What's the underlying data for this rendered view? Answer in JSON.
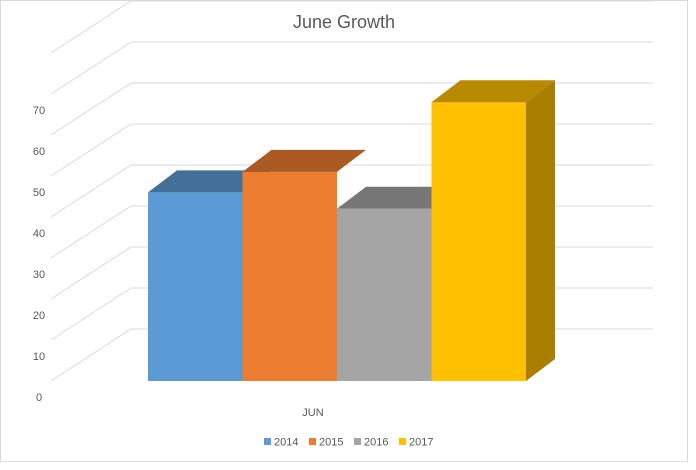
{
  "chart_data": {
    "type": "bar",
    "title": "June Growth",
    "categories": [
      "JUN"
    ],
    "series": [
      {
        "name": "2014",
        "values": [
          46
        ]
      },
      {
        "name": "2015",
        "values": [
          51
        ]
      },
      {
        "name": "2016",
        "values": [
          42
        ]
      },
      {
        "name": "2017",
        "values": [
          68
        ]
      }
    ],
    "ylim": [
      0,
      70
    ],
    "yticks": [
      0,
      10,
      20,
      30,
      40,
      50,
      60,
      70
    ],
    "xlabel": "",
    "ylabel": "",
    "grid": true,
    "legend_position": "bottom",
    "colors": {
      "2014": "#5b9bd5",
      "2015": "#ed7d31",
      "2016": "#a5a5a5",
      "2017": "#ffc000"
    },
    "style": "3d-clustered-column"
  }
}
